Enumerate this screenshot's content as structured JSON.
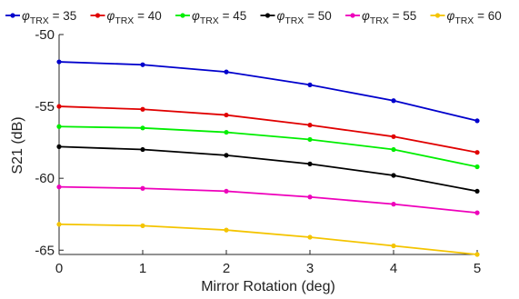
{
  "chart_data": {
    "type": "line",
    "title": "",
    "xlabel": "Mirror Rotation (deg)",
    "ylabel": "S21 (dB)",
    "xlim": [
      0,
      5
    ],
    "ylim": [
      -65.3,
      -50
    ],
    "x": [
      0,
      1,
      2,
      3,
      4,
      5
    ],
    "x_ticks": [
      0,
      1,
      2,
      3,
      4,
      5
    ],
    "y_ticks": [
      -65,
      -60,
      -55,
      -50
    ],
    "legend_position": "top",
    "grid": false,
    "series": [
      {
        "name": "φTRX = 35",
        "legend_symbol": "φ",
        "legend_sub": "TRX",
        "legend_value": " = 35",
        "color": "#0000cc",
        "values": [
          -51.9,
          -52.1,
          -52.6,
          -53.5,
          -54.6,
          -56.0
        ]
      },
      {
        "name": "φTRX = 40",
        "legend_symbol": "φ",
        "legend_sub": "TRX",
        "legend_value": " = 40",
        "color": "#e00000",
        "values": [
          -55.0,
          -55.2,
          -55.6,
          -56.3,
          -57.1,
          -58.2
        ]
      },
      {
        "name": "φTRX = 45",
        "legend_symbol": "φ",
        "legend_sub": "TRX",
        "legend_value": " = 45",
        "color": "#00ee00",
        "values": [
          -56.4,
          -56.5,
          -56.8,
          -57.3,
          -58.0,
          -59.2
        ]
      },
      {
        "name": "φTRX = 50",
        "legend_symbol": "φ",
        "legend_sub": "TRX",
        "legend_value": " = 50",
        "color": "#000000",
        "values": [
          -57.8,
          -58.0,
          -58.4,
          -59.0,
          -59.8,
          -60.9
        ]
      },
      {
        "name": "φTRX = 55",
        "legend_symbol": "φ",
        "legend_sub": "TRX",
        "legend_value": " = 55",
        "color": "#ee00bb",
        "values": [
          -60.6,
          -60.7,
          -60.9,
          -61.3,
          -61.8,
          -62.4
        ]
      },
      {
        "name": "φTRX = 60",
        "legend_symbol": "φ",
        "legend_sub": "TRX",
        "legend_value": " = 60",
        "color": "#f4c400",
        "values": [
          -63.2,
          -63.3,
          -63.6,
          -64.1,
          -64.7,
          -65.3
        ]
      }
    ]
  }
}
